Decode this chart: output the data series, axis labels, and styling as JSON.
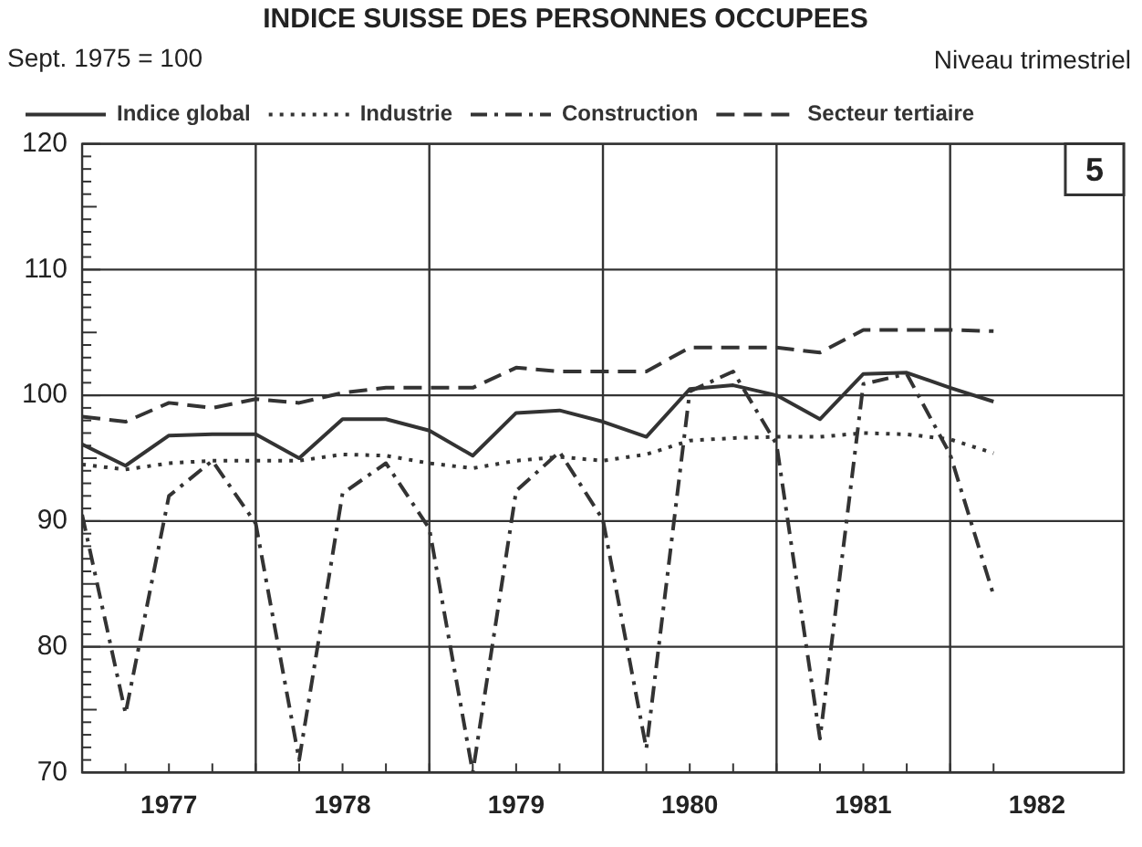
{
  "chart_data": {
    "type": "line",
    "title": "INDICE SUISSE DES PERSONNES OCCUPEES",
    "subtitle": "Sept. 1975 = 100",
    "annotations": [
      "Niveau trimestriel",
      "5"
    ],
    "x": [
      1977,
      1977.25,
      1977.5,
      1977.75,
      1978,
      1978.25,
      1978.5,
      1978.75,
      1979,
      1979.25,
      1979.5,
      1979.75,
      1980,
      1980.25,
      1980.5,
      1980.75,
      1981,
      1981.25,
      1981.5,
      1981.75,
      1982,
      1982.25
    ],
    "xlim": [
      1977,
      1983
    ],
    "xticks": [
      {
        "value": 1977.5,
        "label": "1977"
      },
      {
        "value": 1978.5,
        "label": "1978"
      },
      {
        "value": 1979.5,
        "label": "1979"
      },
      {
        "value": 1980.5,
        "label": "1980"
      },
      {
        "value": 1981.5,
        "label": "1981"
      },
      {
        "value": 1982.5,
        "label": "1982"
      }
    ],
    "ylim": [
      70,
      120
    ],
    "yticks": [
      70,
      80,
      90,
      100,
      110,
      120
    ],
    "grid": true,
    "legend": "top",
    "marker": "none",
    "series": [
      {
        "name": "Indice global",
        "color": "#333333",
        "line_style": "solid",
        "values": [
          96.1,
          94.4,
          96.8,
          96.9,
          96.9,
          95.0,
          98.1,
          98.1,
          97.2,
          95.2,
          98.6,
          98.8,
          97.9,
          96.7,
          100.5,
          100.8,
          100.0,
          98.1,
          101.7,
          101.8,
          100.6,
          99.5
        ]
      },
      {
        "name": "Industrie",
        "color": "#333333",
        "line_style": "dotted",
        "values": [
          94.5,
          94.1,
          94.6,
          94.8,
          94.8,
          94.8,
          95.3,
          95.2,
          94.6,
          94.2,
          94.8,
          95.1,
          94.8,
          95.3,
          96.4,
          96.6,
          96.7,
          96.7,
          97.0,
          96.9,
          96.5,
          95.4
        ]
      },
      {
        "name": "Construction",
        "color": "#333333",
        "line_style": "dashdot",
        "values": [
          90.5,
          74.7,
          92.0,
          94.8,
          89.8,
          71.0,
          92.2,
          94.6,
          89.4,
          70.0,
          92.4,
          95.5,
          90.1,
          71.9,
          100.3,
          101.9,
          96.1,
          72.7,
          100.9,
          101.7,
          95.3,
          84.1
        ]
      },
      {
        "name": "Secteur tertiaire",
        "color": "#333333",
        "line_style": "dashed",
        "values": [
          98.3,
          97.9,
          99.4,
          99.0,
          99.7,
          99.4,
          100.2,
          100.6,
          100.6,
          100.6,
          102.2,
          101.9,
          101.9,
          101.9,
          103.8,
          103.8,
          103.8,
          103.4,
          105.2,
          105.2,
          105.2,
          105.1
        ]
      }
    ]
  }
}
